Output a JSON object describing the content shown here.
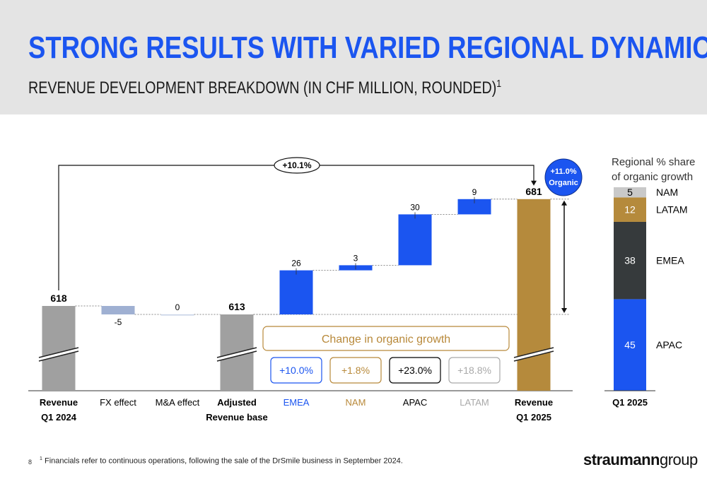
{
  "page": {
    "title": "STRONG RESULTS WITH VARIED REGIONAL DYNAMICS",
    "subtitle": "REVENUE DEVELOPMENT BREAKDOWN (IN CHF MILLION, ROUNDED)",
    "subtitle_sup": "1",
    "footnote_number": "8",
    "footnote_sup": "1",
    "footnote": "Financials refer to continuous operations, following the sale of the DrSmile business in September 2024.",
    "logo_bold": "straumann",
    "logo_light": "group"
  },
  "chart_data": [
    {
      "type": "bar",
      "subtype": "waterfall",
      "categories": [
        [
          "Revenue",
          "Q1 2024"
        ],
        [
          "FX effect"
        ],
        [
          "M&A effect"
        ],
        [
          "Adjusted",
          "Revenue base"
        ],
        [
          "EMEA"
        ],
        [
          "NAM"
        ],
        [
          "APAC"
        ],
        [
          "LATAM"
        ],
        [
          "Revenue",
          "Q1 2025"
        ]
      ],
      "values": [
        618,
        -5,
        0,
        613,
        26,
        3,
        30,
        9,
        681
      ],
      "value_labels": [
        "618",
        "-5",
        "0",
        "613",
        "26",
        "3",
        "30",
        "9",
        "681"
      ],
      "kinds": [
        "total",
        "delta",
        "delta",
        "total",
        "delta",
        "delta",
        "delta",
        "delta",
        "total"
      ],
      "bold_labels": [
        true,
        false,
        false,
        true,
        false,
        false,
        false,
        false,
        true
      ],
      "label_colors": [
        "#000000",
        "#000000",
        "#000000",
        "#000000",
        "#1b55f0",
        "#b8893a",
        "#000000",
        "#a9a9a9",
        "#000000"
      ],
      "colors": {
        "total_start": "#a0a0a0",
        "fx": "#9fb0d2",
        "ma": "#c5d0e6",
        "region_delta": "#1b55f0",
        "total_end": "#b58a3c",
        "line": "#000000"
      },
      "axis_break": true,
      "growth_total_label": "+10.1%",
      "organic_badge": [
        "+11.0%",
        "Organic"
      ],
      "organic_badge_color": "#1b55f0",
      "panel": {
        "title": "Change in organic growth",
        "title_color": "#b8893a",
        "items": [
          {
            "region": "EMEA",
            "value": "+10.0%",
            "color": "#1b55f0"
          },
          {
            "region": "NAM",
            "value": "+1.8%",
            "color": "#b8893a"
          },
          {
            "region": "APAC",
            "value": "+23.0%",
            "color": "#000000"
          },
          {
            "region": "LATAM",
            "value": "+18.8%",
            "color": "#a9a9a9"
          }
        ]
      }
    },
    {
      "type": "bar",
      "subtype": "stacked-100",
      "title": "Regional % share of organic growth",
      "categories": [
        "Q1 2025"
      ],
      "series": [
        {
          "name": "APAC",
          "values": [
            45
          ],
          "color": "#1b55f0"
        },
        {
          "name": "EMEA",
          "values": [
            38
          ],
          "color": "#363a3c"
        },
        {
          "name": "LATAM",
          "values": [
            12
          ],
          "color": "#b58a3c"
        },
        {
          "name": "NAM",
          "values": [
            5
          ],
          "color": "#c9c9c9"
        }
      ]
    }
  ]
}
